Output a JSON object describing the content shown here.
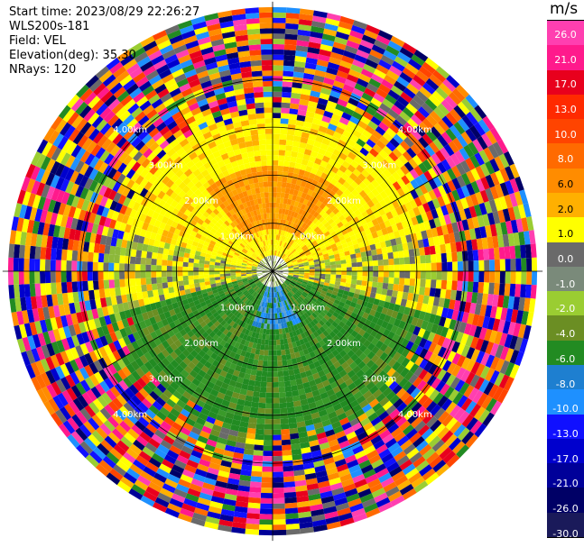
{
  "info": {
    "start_time": "Start time: 2023/08/29 22:26:27",
    "instrument": "WLS200s-181",
    "field": "Field: VEL",
    "elevation": "Elevation(deg): 35.30",
    "nrays": "NRays: 120"
  },
  "chart_data": {
    "type": "ppi",
    "field": "VEL",
    "units": "m/s",
    "nrays": 120,
    "range_rings_km": [
      1.0,
      2.0,
      3.0,
      4.0
    ],
    "max_range_km": 5.5,
    "range_labels": {
      "ring1": "1.00km",
      "ring2": "2.00km",
      "ring3": "3.00km",
      "ring4": "4.00km"
    },
    "colorbar": {
      "title": "m/s",
      "ticks": [
        "26.0",
        "21.0",
        "17.0",
        "13.0",
        "10.0",
        "8.0",
        "6.0",
        "2.0",
        "1.0",
        "0.0",
        "-1.0",
        "-2.0",
        "-4.0",
        "-6.0",
        "-8.0",
        "-10.0",
        "-13.0",
        "-17.0",
        "-21.0",
        "-26.0",
        "-30.0"
      ],
      "colors": [
        "#ff3fb0",
        "#ff1a8c",
        "#e8001d",
        "#ff2a00",
        "#ff4400",
        "#ff6a00",
        "#ff8c00",
        "#ffb000",
        "#ffff00",
        "#6a6a6a",
        "#7a8a7a",
        "#9acd32",
        "#6b8e23",
        "#228b22",
        "#1e7fd0",
        "#1e90ff",
        "#1010ff",
        "#0000cd",
        "#000099",
        "#000066",
        "#1a1a5a"
      ]
    },
    "sectors": {
      "north_near": "orange",
      "north_mid": "yellow",
      "south_near": "green",
      "south_center": "light-blue",
      "outer": "noisy"
    }
  }
}
